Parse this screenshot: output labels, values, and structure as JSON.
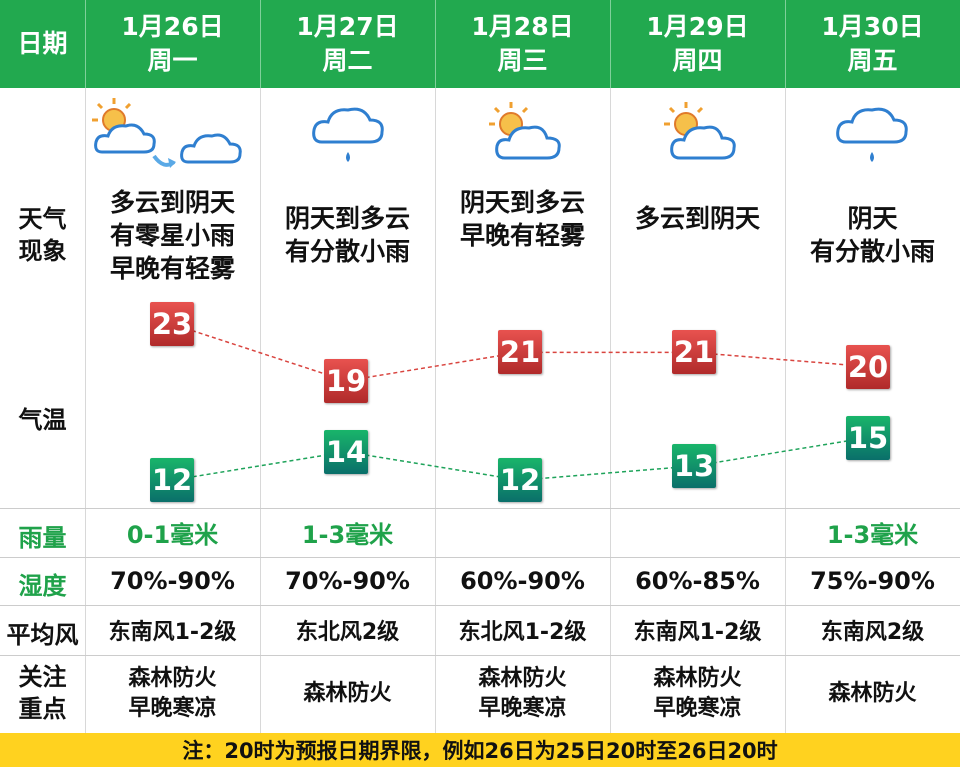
{
  "header": {
    "date_label": "日期",
    "days": [
      {
        "date": "1月26日",
        "weekday": "周一"
      },
      {
        "date": "1月27日",
        "weekday": "周二"
      },
      {
        "date": "1月28日",
        "weekday": "周三"
      },
      {
        "date": "1月29日",
        "weekday": "周四"
      },
      {
        "date": "1月30日",
        "weekday": "周五"
      }
    ]
  },
  "labels": {
    "weather_1": "天气",
    "weather_2": "现象",
    "temp": "气温",
    "rain": "雨量",
    "humidity": "湿度",
    "wind": "平均风",
    "focus_1": "关注",
    "focus_2": "重点"
  },
  "weather": [
    {
      "icon": "partly-cloudy-to-cloudy-icon",
      "lines": [
        "多云到阴天",
        "有零星小雨",
        "早晚有轻雾"
      ]
    },
    {
      "icon": "light-rain-cloud-icon",
      "lines": [
        "阴天到多云",
        "有分散小雨"
      ]
    },
    {
      "icon": "partly-cloudy-icon",
      "lines": [
        "阴天到多云",
        "早晚有轻雾"
      ]
    },
    {
      "icon": "partly-cloudy-icon",
      "lines": [
        "多云到阴天"
      ]
    },
    {
      "icon": "light-rain-cloud-icon",
      "lines": [
        "阴天",
        "有分散小雨"
      ]
    }
  ],
  "temperature": {
    "high": [
      23,
      19,
      21,
      21,
      20
    ],
    "low": [
      12,
      14,
      12,
      13,
      15
    ],
    "high_color": "#c93535",
    "low_color": "#119a63"
  },
  "rain": [
    "0-1毫米",
    "1-3毫米",
    "",
    "",
    "1-3毫米"
  ],
  "humidity": [
    "70%-90%",
    "70%-90%",
    "60%-90%",
    "60%-85%",
    "75%-90%"
  ],
  "wind": [
    "东南风1-2级",
    "东北风2级",
    "东北风1-2级",
    "东南风1-2级",
    "东南风2级"
  ],
  "focus": [
    [
      "森林防火",
      "早晚寒凉"
    ],
    [
      "森林防火"
    ],
    [
      "森林防火",
      "早晚寒凉"
    ],
    [
      "森林防火",
      "早晚寒凉"
    ],
    [
      "森林防火"
    ]
  ],
  "footer": "注：20时为预报日期界限，例如26日为25日20时至26日20时",
  "colors": {
    "header": "#22a94f",
    "footer": "#ffd21f",
    "accent_text": "#1fa24a"
  }
}
